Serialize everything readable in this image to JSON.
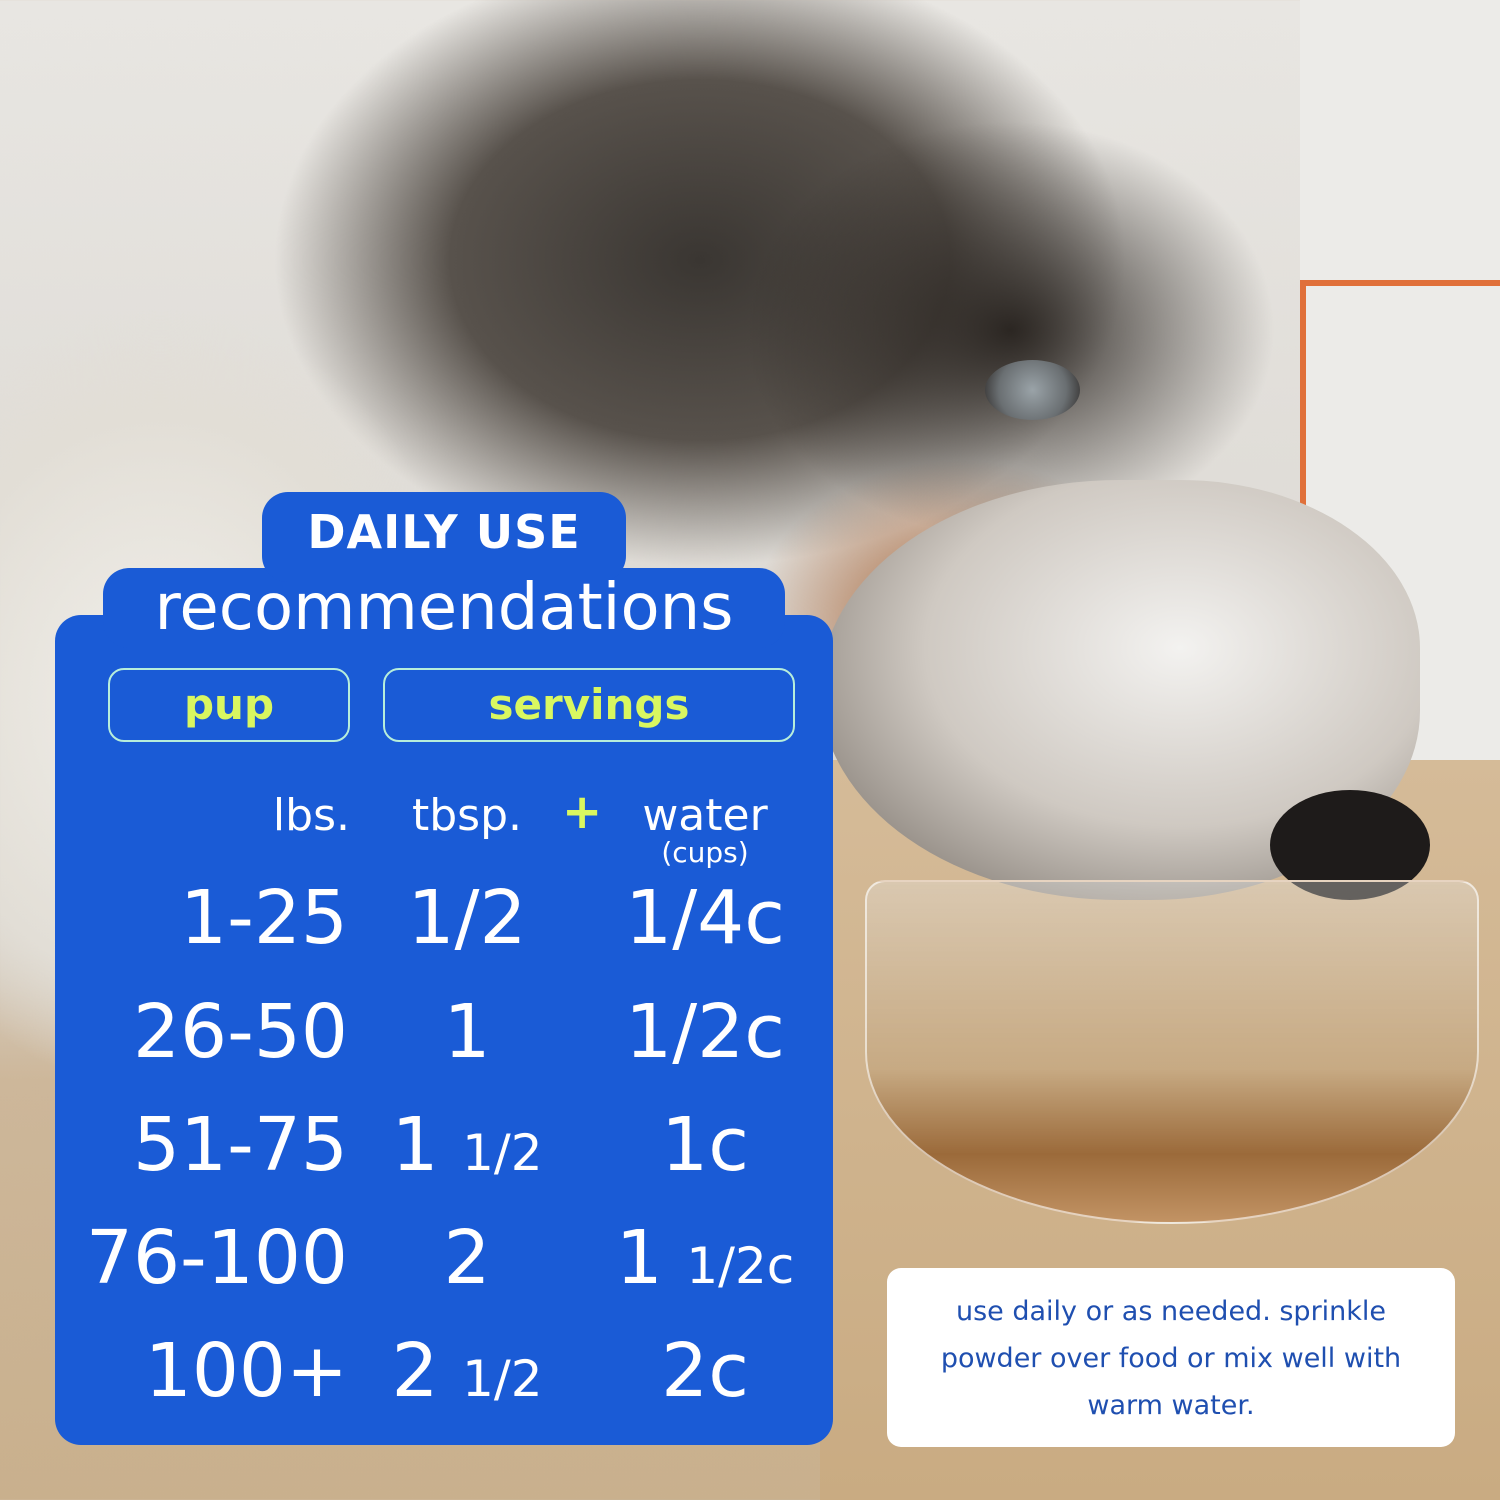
{
  "title_top": "DAILY USE",
  "title_main": "recommendations",
  "headers": {
    "pup": "pup",
    "servings": "servings"
  },
  "columns": {
    "lbs": "lbs.",
    "tbsp": "tbsp.",
    "plus": "+",
    "water": "water",
    "water_unit": "(cups)"
  },
  "rows": [
    {
      "lbs": "1-25",
      "tbsp_whole": "",
      "tbsp_frac": "1/2",
      "water_whole": "",
      "water_frac": "1/4c"
    },
    {
      "lbs": "26-50",
      "tbsp_whole": "1",
      "tbsp_frac": "",
      "water_whole": "",
      "water_frac": "1/2c"
    },
    {
      "lbs": "51-75",
      "tbsp_whole": "1",
      "tbsp_frac": "1/2",
      "water_whole": "1c",
      "water_frac": ""
    },
    {
      "lbs": "76-100",
      "tbsp_whole": "2",
      "tbsp_frac": "",
      "water_whole": "1",
      "water_frac": "1/2c"
    },
    {
      "lbs": "100+",
      "tbsp_whole": "2",
      "tbsp_frac": "1/2",
      "water_whole": "2c",
      "water_frac": ""
    }
  ],
  "note": "use daily or as needed. sprinkle powder over food or mix well with warm water.",
  "colors": {
    "panel": "#1a5bd6",
    "accent": "#d9f760",
    "note_text": "#1f4fb0"
  }
}
